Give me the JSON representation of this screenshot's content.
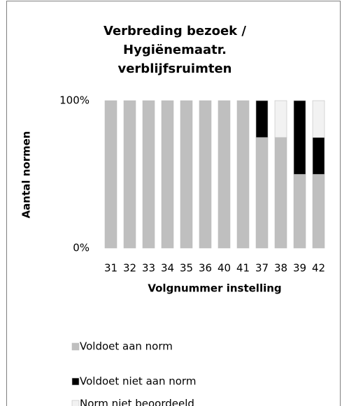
{
  "chart_data": {
    "type": "stacked_bar",
    "title": [
      "Verbreding bezoek /",
      "Hygiënemaatr.",
      "verblijfsruimten"
    ],
    "x_label": "Volgnummer  instelling",
    "y_label": "Aantal normen",
    "categories": [
      "31",
      "32",
      "33",
      "34",
      "35",
      "36",
      "40",
      "41",
      "37",
      "38",
      "39",
      "42"
    ],
    "series": [
      {
        "name": "Voldoet aan norm",
        "color": "#bfbfbf",
        "values": [
          100,
          100,
          100,
          100,
          100,
          100,
          100,
          100,
          75,
          75,
          50,
          50
        ]
      },
      {
        "name": "Voldoet niet aan norm",
        "color": "#000000",
        "values": [
          0,
          0,
          0,
          0,
          0,
          0,
          0,
          0,
          25,
          0,
          50,
          25
        ]
      },
      {
        "name": "Norm niet beoordeeld",
        "color": "#f2f2f2",
        "values": [
          0,
          0,
          0,
          0,
          0,
          0,
          0,
          0,
          0,
          25,
          0,
          25
        ]
      }
    ],
    "ylim": [
      0,
      100
    ],
    "yticks": [
      {
        "value": 0,
        "label": "0%"
      },
      {
        "value": 100,
        "label": "100%"
      }
    ],
    "grid": false,
    "legend": "bottom"
  }
}
